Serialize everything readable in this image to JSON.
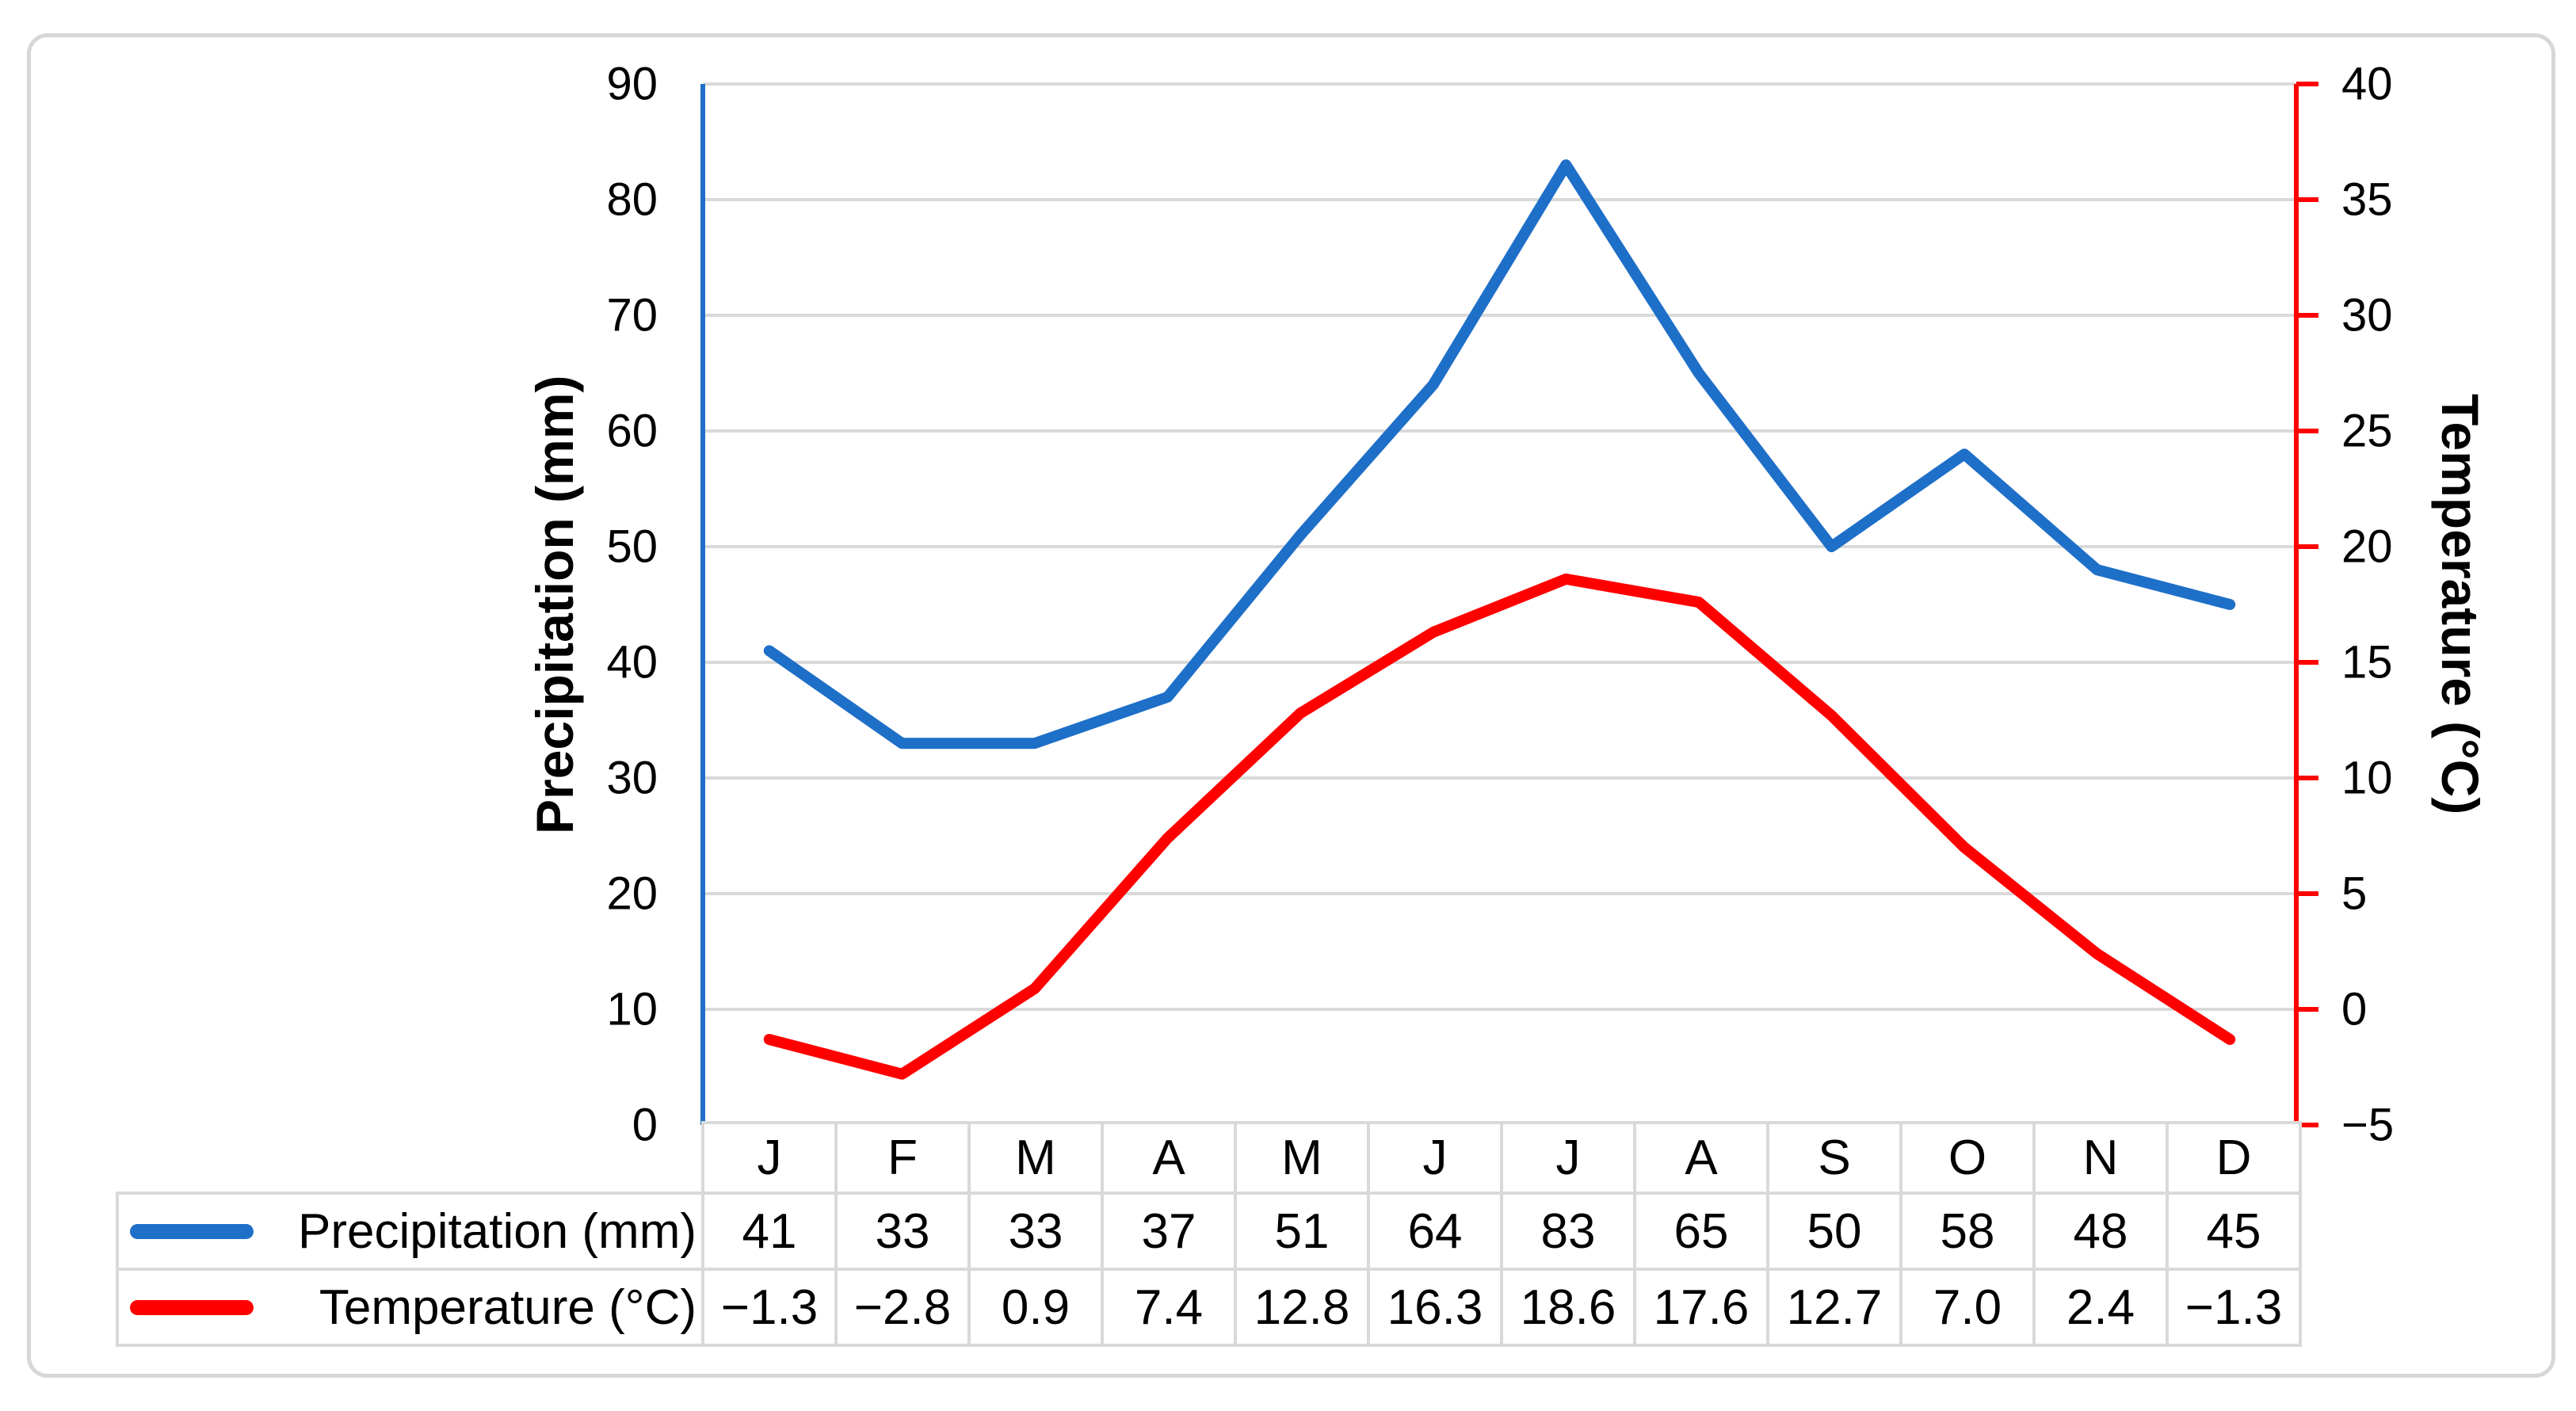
{
  "figure": {
    "background": "#ffffff",
    "border_color": "#d7d7d7"
  },
  "chart_data": {
    "type": "line",
    "categories": [
      "J",
      "F",
      "M",
      "A",
      "M",
      "J",
      "J",
      "A",
      "S",
      "O",
      "N",
      "D"
    ],
    "series": [
      {
        "key": "precipitation",
        "name": "Precipitation (mm)",
        "axis": "left",
        "color": "#1e6fc8",
        "values": [
          41,
          33,
          33,
          37,
          51,
          64,
          83,
          65,
          50,
          58,
          48,
          45
        ],
        "display_values": [
          "41",
          "33",
          "33",
          "37",
          "51",
          "64",
          "83",
          "65",
          "50",
          "58",
          "48",
          "45"
        ]
      },
      {
        "key": "temperature",
        "name": "Temperature (°C)",
        "axis": "right",
        "color": "#ff0000",
        "values": [
          -1.3,
          -2.8,
          0.9,
          7.4,
          12.8,
          16.3,
          18.6,
          17.6,
          12.7,
          7.0,
          2.4,
          -1.3
        ],
        "display_values": [
          "−1.3",
          "−2.8",
          "0.9",
          "7.4",
          "12.8",
          "16.3",
          "18.6",
          "17.6",
          "12.7",
          "7.0",
          "2.4",
          "−1.3"
        ]
      }
    ],
    "left_axis": {
      "title": "Precipitation (mm)",
      "min": 0,
      "max": 90,
      "step": 10,
      "tick_values": [
        90,
        80,
        70,
        60,
        50,
        40,
        30,
        20,
        10,
        0
      ],
      "tick_labels": [
        "90",
        "80",
        "70",
        "60",
        "50",
        "40",
        "30",
        "20",
        "10",
        "0"
      ],
      "color": "#1e6fc8"
    },
    "right_axis": {
      "title": "Temperature (°C)",
      "min": -5,
      "max": 40,
      "step": 5,
      "tick_values": [
        40,
        35,
        30,
        25,
        20,
        15,
        10,
        5,
        0,
        -5
      ],
      "tick_labels": [
        "40",
        "35",
        "30",
        "25",
        "20",
        "15",
        "10",
        "5",
        "0",
        "−5"
      ],
      "color": "#ff0000"
    },
    "gridline_color": "#d9d9d9",
    "grid": "horizontal",
    "legend_position": "data-table"
  }
}
